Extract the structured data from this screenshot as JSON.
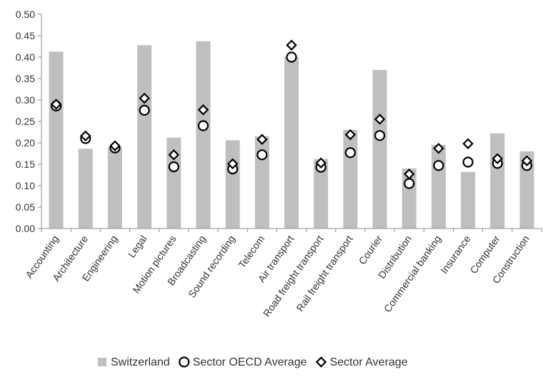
{
  "chart_data": {
    "type": "bar",
    "categories": [
      "Accounting",
      "Architecture",
      "Engineering",
      "Legal",
      "Motion pictures",
      "Broadcasting",
      "Sound recording",
      "Telecom",
      "Air transport",
      "Road freight transport",
      "Rail freight transport",
      "Courier",
      "Distribution",
      "Commercial banking",
      "Insurance",
      "Computer",
      "Construction"
    ],
    "series": [
      {
        "name": "Switzerland",
        "kind": "bar",
        "color": "#bfbfbf",
        "values": [
          0.413,
          0.186,
          0.19,
          0.428,
          0.212,
          0.437,
          0.206,
          0.215,
          0.4,
          0.162,
          0.23,
          0.37,
          0.14,
          0.195,
          0.132,
          0.222,
          0.18
        ]
      },
      {
        "name": "Sector OECD Average",
        "kind": "marker",
        "marker": "circle",
        "color": "#000000",
        "values": [
          0.286,
          0.21,
          0.188,
          0.276,
          0.144,
          0.24,
          0.139,
          0.172,
          0.4,
          0.143,
          0.177,
          0.217,
          0.105,
          0.147,
          0.155,
          0.152,
          0.147
        ]
      },
      {
        "name": "Sector Average",
        "kind": "marker",
        "marker": "diamond",
        "color": "#000000",
        "values": [
          0.29,
          0.216,
          0.193,
          0.304,
          0.172,
          0.277,
          0.151,
          0.208,
          0.428,
          0.153,
          0.219,
          0.255,
          0.127,
          0.187,
          0.198,
          0.163,
          0.158
        ]
      }
    ],
    "y_ticks": [
      "0.00",
      "0.05",
      "0.10",
      "0.15",
      "0.20",
      "0.25",
      "0.30",
      "0.35",
      "0.40",
      "0.45",
      "0.50"
    ],
    "ylim": [
      0,
      0.5
    ],
    "title": "",
    "xlabel": "",
    "ylabel": "",
    "grid": false,
    "legend_position": "bottom"
  }
}
